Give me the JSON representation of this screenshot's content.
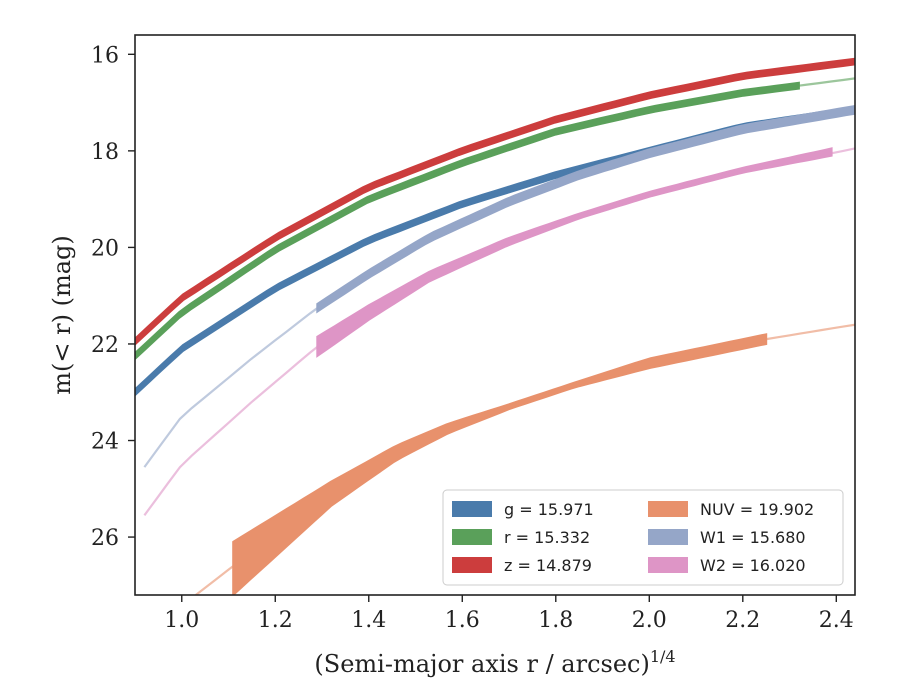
{
  "chart_data": {
    "type": "line",
    "xlabel": "(Semi-major axis r / arcsec)",
    "xlabel_sup": "1/4",
    "ylabel": "m(< r) (mag)",
    "xlim": [
      0.9,
      2.44
    ],
    "ylim": [
      27.2,
      15.6
    ],
    "y_inverted": true,
    "xticks": [
      1.0,
      1.2,
      1.4,
      1.6,
      1.8,
      2.0,
      2.2,
      2.4
    ],
    "xtick_labels": [
      "1.0",
      "1.2",
      "1.4",
      "1.6",
      "1.8",
      "2.0",
      "2.2",
      "2.4"
    ],
    "yticks": [
      16,
      18,
      20,
      22,
      24,
      26
    ],
    "ytick_labels": [
      "16",
      "18",
      "20",
      "22",
      "24",
      "26"
    ],
    "legend_position": "lower-right",
    "series": [
      {
        "key": "g",
        "legend": "g = 15.971",
        "color": "#4a7bab",
        "x": [
          0.9,
          1.0,
          1.2,
          1.4,
          1.6,
          1.8,
          2.0,
          2.2,
          2.44
        ],
        "y": [
          23.0,
          22.1,
          20.85,
          19.85,
          19.1,
          18.5,
          18.0,
          17.5,
          17.15
        ],
        "band": 0.06,
        "solid_xmax": 2.44
      },
      {
        "key": "r",
        "legend": "r = 15.332",
        "color": "#5aa05a",
        "x": [
          0.9,
          1.0,
          1.2,
          1.4,
          1.6,
          1.8,
          2.0,
          2.2,
          2.44
        ],
        "y": [
          22.25,
          21.35,
          20.05,
          19.0,
          18.25,
          17.6,
          17.15,
          16.8,
          16.5
        ],
        "band": 0.06,
        "solid_xmax": 2.32
      },
      {
        "key": "z",
        "legend": "z = 14.879",
        "color": "#cc3d3d",
        "x": [
          0.9,
          1.0,
          1.2,
          1.4,
          1.6,
          1.8,
          2.0,
          2.2,
          2.44
        ],
        "y": [
          21.95,
          21.05,
          19.8,
          18.75,
          18.0,
          17.35,
          16.85,
          16.45,
          16.15
        ],
        "band": 0.06,
        "solid_xmax": 2.44
      },
      {
        "key": "NUV",
        "legend": "NUV = 19.902",
        "color": "#e8916c",
        "x": [
          1.03,
          1.11,
          1.32,
          1.46,
          1.57,
          1.7,
          1.84,
          2.0,
          2.25,
          2.44
        ],
        "y": [
          27.2,
          26.6,
          25.1,
          24.25,
          23.75,
          23.3,
          22.85,
          22.4,
          21.9,
          21.6
        ],
        "band_lo": [
          27.2,
          26.1,
          24.85,
          24.1,
          23.65,
          23.25,
          22.8,
          22.3,
          21.8,
          21.6
        ],
        "band_hi": [
          27.2,
          27.2,
          25.35,
          24.4,
          23.85,
          23.35,
          22.9,
          22.5,
          22.0,
          21.6
        ],
        "solid_xmin": 1.11,
        "solid_xmax": 2.25
      },
      {
        "key": "W1",
        "legend": "W1 = 15.680",
        "color": "#95a6c8",
        "x": [
          0.92,
          1.0,
          1.15,
          1.29,
          1.4,
          1.53,
          1.7,
          1.85,
          2.0,
          2.2,
          2.44
        ],
        "y": [
          24.55,
          23.5,
          22.3,
          21.25,
          20.55,
          19.8,
          19.05,
          18.5,
          18.05,
          17.55,
          17.15
        ],
        "band": 0.08,
        "solid_xmin": 1.29,
        "solid_xmax": 2.44
      },
      {
        "key": "W2",
        "legend": "W2 = 16.020",
        "color": "#de95c6",
        "x": [
          0.92,
          1.0,
          1.15,
          1.29,
          1.4,
          1.53,
          1.7,
          1.85,
          2.0,
          2.2,
          2.39,
          2.44
        ],
        "y": [
          25.55,
          24.5,
          23.2,
          22.05,
          21.35,
          20.6,
          19.9,
          19.35,
          18.9,
          18.4,
          18.05,
          17.95
        ],
        "band_lo": [
          25.55,
          24.5,
          23.2,
          21.85,
          21.2,
          20.5,
          19.8,
          19.3,
          18.85,
          18.35,
          17.95,
          17.95
        ],
        "band_hi": [
          25.55,
          24.5,
          23.2,
          22.25,
          21.5,
          20.7,
          19.95,
          19.4,
          18.95,
          18.45,
          18.1,
          17.95
        ],
        "solid_xmin": 1.29,
        "solid_xmax": 2.39
      }
    ]
  }
}
